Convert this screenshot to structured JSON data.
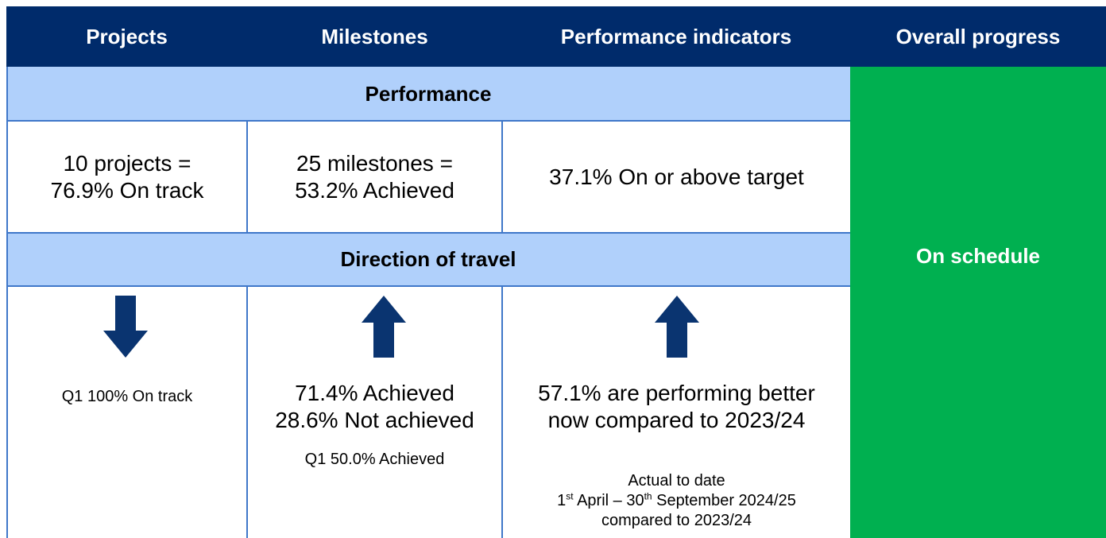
{
  "header": [
    "Projects",
    "Milestones",
    "Performance indicators",
    "Overall progress"
  ],
  "performance": {
    "title": "Performance",
    "cells": [
      [
        "10 projects =",
        "76.9% On track"
      ],
      [
        "25 milestones =",
        "53.2% Achieved"
      ],
      [
        "37.1% On or above target"
      ]
    ]
  },
  "direction": {
    "title": "Direction of travel",
    "cells": [
      {
        "note": [
          "Q1 100% On track"
        ]
      },
      {
        "main": [
          "71.4% Achieved",
          "28.6% Not achieved"
        ],
        "note": [
          "Q1 50.0% Achieved"
        ]
      },
      {
        "main": [
          "57.1% are performing better",
          "now compared to 2023/24"
        ],
        "note": [
          "Actual to date",
          [
            "1",
            "st",
            " April – 30",
            "th",
            " September 2024/25"
          ],
          "compared to 2023/24"
        ]
      }
    ]
  },
  "overall": "On schedule"
}
